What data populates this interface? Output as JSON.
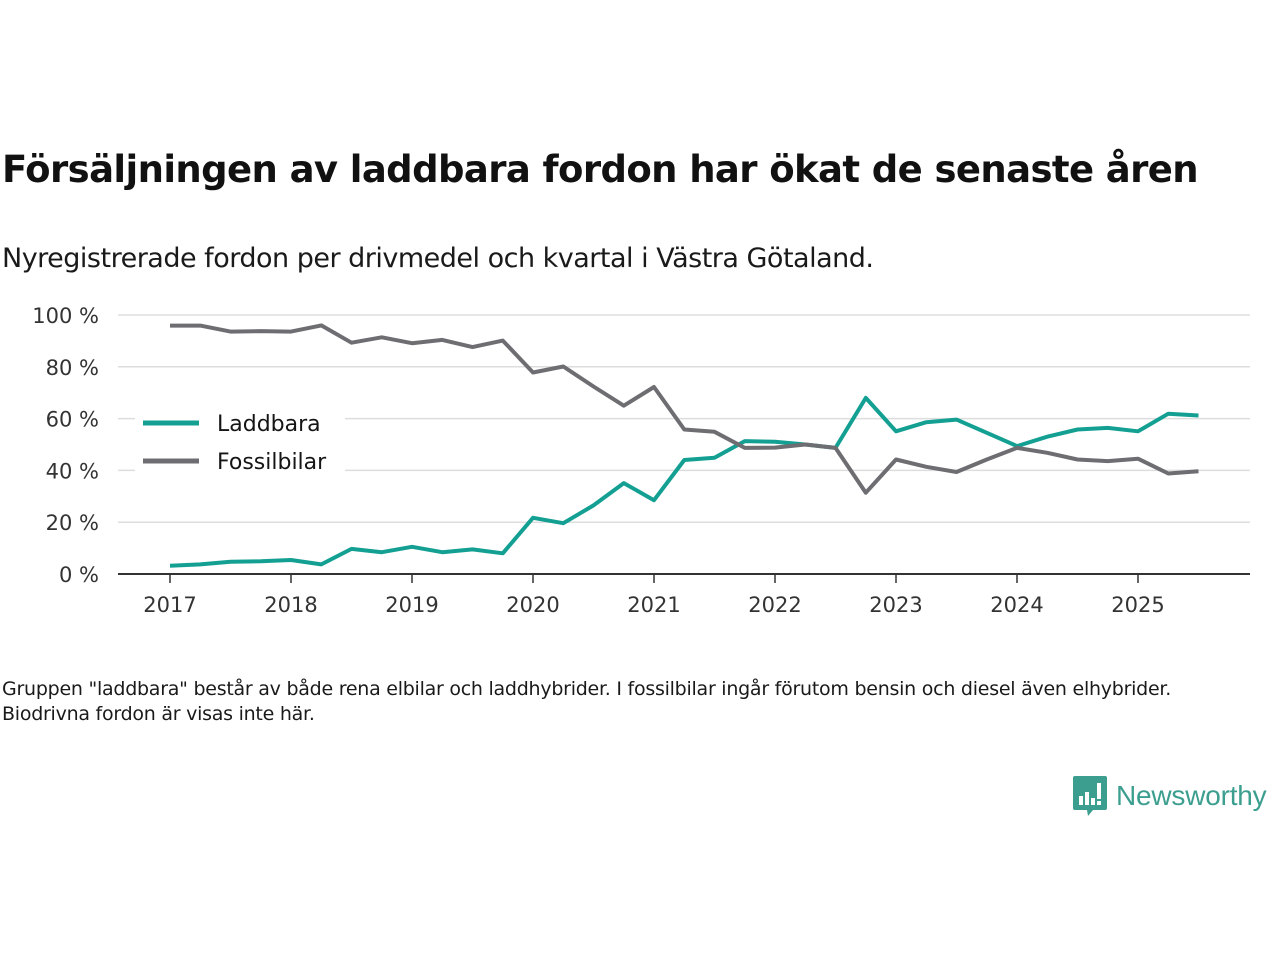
{
  "header": {
    "title": "Försäljningen av laddbara fordon har ökat de senaste åren",
    "subtitle": "Nyregistrerade fordon per drivmedel och kvartal i Västra Götaland."
  },
  "footnote": "Gruppen \"laddbara\" består av både rena elbilar och laddhybrider. I fossilbilar ingår förutom bensin och diesel även elhybrider. Biodrivna fordon är visas inte här.",
  "logo": {
    "text": "Newsworthy",
    "icon": "newsworthy-bar-chart-speech-icon",
    "color": "#3b9e8f"
  },
  "chart_data": {
    "type": "line",
    "title": "Försäljningen av laddbara fordon har ökat de senaste åren",
    "subtitle": "Nyregistrerade fordon per drivmedel och kvartal i Västra Götaland.",
    "xlabel": "",
    "ylabel": "",
    "x_start": 2017.0,
    "x_step": 0.25,
    "x": [
      "2017Q1",
      "2017Q2",
      "2017Q3",
      "2017Q4",
      "2018Q1",
      "2018Q2",
      "2018Q3",
      "2018Q4",
      "2019Q1",
      "2019Q2",
      "2019Q3",
      "2019Q4",
      "2020Q1",
      "2020Q2",
      "2020Q3",
      "2020Q4",
      "2021Q1",
      "2021Q2",
      "2021Q3",
      "2021Q4",
      "2022Q1",
      "2022Q2",
      "2022Q3",
      "2022Q4",
      "2023Q1",
      "2023Q2",
      "2023Q3",
      "2023Q4",
      "2024Q1",
      "2024Q2",
      "2024Q3",
      "2024Q4",
      "2025Q1",
      "2025Q2",
      "2025Q3"
    ],
    "xlim": [
      2016.6,
      2025.9
    ],
    "ylim": [
      0,
      100
    ],
    "x_ticks": [
      2017,
      2018,
      2019,
      2020,
      2021,
      2022,
      2023,
      2024,
      2025
    ],
    "x_tick_labels": [
      "2017",
      "2018",
      "2019",
      "2020",
      "2021",
      "2022",
      "2023",
      "2024",
      "2025"
    ],
    "y_ticks": [
      0,
      20,
      40,
      60,
      80,
      100
    ],
    "y_tick_labels": [
      "0 %",
      "20 %",
      "40 %",
      "60 %",
      "80 %",
      "100 %"
    ],
    "grid": "horizontal",
    "legend_position": "center-left",
    "series": [
      {
        "name": "Laddbara",
        "color": "#13a093",
        "values": [
          3.2,
          3.7,
          4.7,
          4.9,
          5.4,
          3.7,
          9.7,
          8.4,
          10.5,
          8.4,
          9.5,
          8.0,
          21.7,
          19.6,
          26.5,
          35.1,
          28.5,
          44.0,
          44.9,
          51.3,
          51.1,
          50.0,
          48.7,
          68.0,
          55.1,
          58.6,
          59.6,
          54.5,
          49.4,
          53.0,
          55.8,
          56.4,
          55.1,
          61.9,
          61.2
        ]
      },
      {
        "name": "Fossilbilar",
        "color": "#6e6d72",
        "values": [
          95.9,
          95.9,
          93.6,
          93.8,
          93.6,
          96.0,
          89.3,
          91.4,
          89.1,
          90.4,
          87.6,
          90.1,
          77.8,
          80.1,
          72.4,
          65.0,
          72.2,
          55.8,
          54.9,
          48.7,
          48.8,
          50.0,
          48.7,
          31.4,
          44.2,
          41.4,
          39.4,
          44.2,
          48.7,
          46.8,
          44.2,
          43.6,
          44.5,
          38.8,
          39.7
        ]
      }
    ]
  }
}
